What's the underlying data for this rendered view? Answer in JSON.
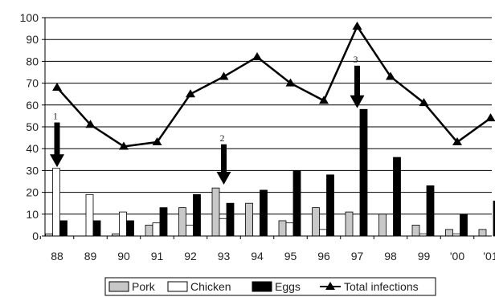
{
  "chart_data": {
    "type": "bar",
    "categories": [
      "88",
      "89",
      "90",
      "91",
      "92",
      "93",
      "94",
      "95",
      "96",
      "97",
      "98",
      "99",
      "'00",
      "'01"
    ],
    "ylim": [
      0,
      100
    ],
    "yticks": [
      "0",
      "10",
      "20",
      "30",
      "40",
      "50",
      "60",
      "70",
      "80",
      "90",
      "100"
    ],
    "grid": true,
    "legend_position": "bottom",
    "series": [
      {
        "name": "Pork",
        "type": "bar",
        "color": "#c8c8c8",
        "values": [
          1,
          0,
          1,
          5,
          13,
          22,
          15,
          7,
          13,
          11,
          10,
          5,
          3,
          3
        ]
      },
      {
        "name": "Chicken",
        "type": "bar",
        "color": "#ffffff",
        "values": [
          31,
          19,
          11,
          6,
          5,
          8,
          10,
          6,
          3,
          0,
          0,
          1,
          1,
          0
        ]
      },
      {
        "name": "Eggs",
        "type": "bar",
        "color": "#000000",
        "values": [
          7,
          7,
          7,
          13,
          19,
          15,
          21,
          30,
          28,
          58,
          36,
          23,
          10,
          16
        ]
      },
      {
        "name": "Total infections",
        "type": "line",
        "color": "#000000",
        "values": [
          68,
          51,
          41,
          43,
          65,
          73,
          82,
          70,
          62,
          96,
          73,
          61,
          43,
          54
        ]
      }
    ],
    "annotations": [
      {
        "label": "1",
        "category": "88",
        "y_from": 52,
        "y_to": 33
      },
      {
        "label": "2",
        "category": "93",
        "y_from": 42,
        "y_to": 25
      },
      {
        "label": "3",
        "category": "97",
        "y_from": 78,
        "y_to": 60
      }
    ]
  }
}
